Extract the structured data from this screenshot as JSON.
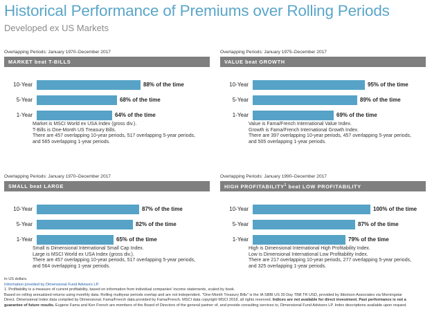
{
  "page": {
    "title": "Historical Performance of Premiums over Rolling Periods",
    "subtitle": "Developed ex US Markets"
  },
  "colors": {
    "bar": "#56a3c7",
    "header": "#7f7f7f",
    "title": "#5aa6c9"
  },
  "chart_data": [
    {
      "type": "bar",
      "orientation": "horizontal",
      "period": "Overlapping Periods: January 1970–December 2017",
      "title": "MARKET beat T-BILLS",
      "categories": [
        "10-Year",
        "5-Year",
        "1-Year"
      ],
      "values": [
        88,
        68,
        64
      ],
      "value_labels": [
        "88% of the time",
        "68% of the time",
        "64% of the time"
      ],
      "notes": [
        "Market is MSCI World ex USA Index (gross div.).",
        "T-Bills is One-Month US Treasury Bills.",
        "There are 457 overlapping 10-year periods, 517 overlapping 5-year periods,",
        "and 565 overlapping 1-year periods."
      ]
    },
    {
      "type": "bar",
      "orientation": "horizontal",
      "period": "Overlapping Periods: January 1975–December 2017",
      "title": "VALUE beat GROWTH",
      "categories": [
        "10-Year",
        "5-Year",
        "1-Year"
      ],
      "values": [
        95,
        89,
        69
      ],
      "value_labels": [
        "95% of the time",
        "89% of the time",
        "69% of the time"
      ],
      "notes": [
        "Value is Fama/French International Value Index.",
        "Growth is Fama/French International Growth Index.",
        "There are 397 overlapping 10-year periods, 457 overlapping 5-year periods,",
        "and 505 overlapping 1-year periods."
      ]
    },
    {
      "type": "bar",
      "orientation": "horizontal",
      "period": "Overlapping Periods: January 1970–December 2017",
      "title": "SMALL beat LARGE",
      "categories": [
        "10-Year",
        "5-Year",
        "1-Year"
      ],
      "values": [
        87,
        82,
        65
      ],
      "value_labels": [
        "87% of the time",
        "82% of the time",
        "65% of the time"
      ],
      "notes": [
        "Small is Dimensional International Small Cap Index.",
        "Large is MSCI World ex USA Index (gross div.).",
        "There are 457 overlapping 10-year periods, 517 overlapping 5-year periods,",
        "and 564 overlapping 1-year periods."
      ]
    },
    {
      "type": "bar",
      "orientation": "horizontal",
      "period": "Overlapping Periods: January 1990–December 2017",
      "title": "HIGH PROFITABILITY",
      "title_sup": "1",
      "title_rest": " beat LOW PROFITABILITY",
      "categories": [
        "10-Year",
        "5-Year",
        "1-Year"
      ],
      "values": [
        100,
        87,
        79
      ],
      "value_labels": [
        "100% of the time",
        "87% of the time",
        "79% of the time"
      ],
      "notes": [
        "High is Dimensional International High Profitability Index.",
        "Low is Dimensional International Low Profitability Index.",
        "There are 217 overlapping 10-year periods, 277 overlapping 5-year periods,",
        "and 325 overlapping 1-year periods."
      ]
    }
  ],
  "footer": {
    "line1": "In US dollars.",
    "line2": "Information provided by Dimensional Fund Advisors LP.",
    "line3": "1. Profitability is a measure of current profitability, based on information from individual companies' income statements, scaled by book.",
    "line4": "Based on rolling annualized returns using monthly data. Rolling multiyear periods overlap and are not independent. \"One-Month Treasury Bills\" is the IA SBBI US 30 Day TBill TR USD, provided by Ibbotson Associates via Morningstar",
    "line5_a": "Direct. Dimensional Index data compiled by Dimensional. Fama/French data provided by Fama/French. MSCI data copyright MSCI 2018, all rights reserved. ",
    "line5_b": "Indices are not available for direct investment. Past performance is not a",
    "line6_a": "guarantee of future results.",
    "line6_b": " Eugene Fama and Ken French are members of the Board of Directors of the general partner of, and provide consulting services to, Dimensional Fund Advisors LP. Index descriptions available upon request."
  }
}
